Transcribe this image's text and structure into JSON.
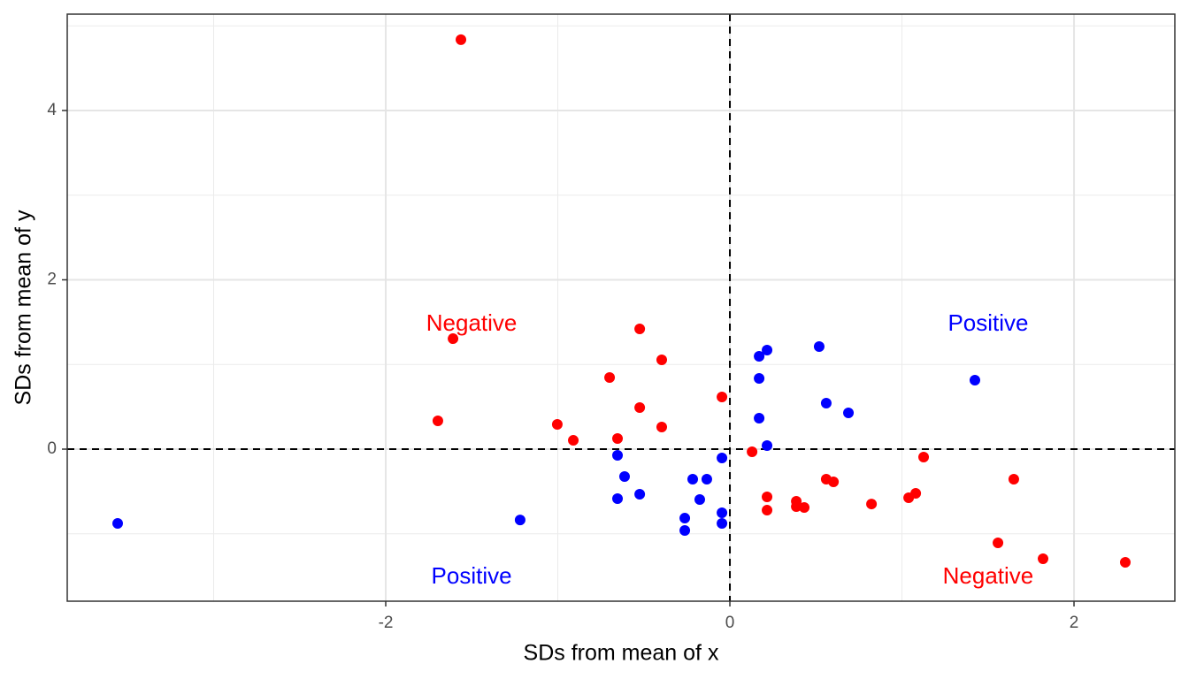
{
  "chart_data": {
    "type": "scatter",
    "xlabel": "SDs from mean of x",
    "ylabel": "SDs from mean of y",
    "xlim": [
      -3.851,
      2.586
    ],
    "ylim": [
      -1.796,
      5.138
    ],
    "xticks": [
      -2,
      0,
      2
    ],
    "yticks": [
      0,
      2,
      4
    ],
    "x_minor_grid": [
      -3,
      -1,
      1
    ],
    "y_minor_grid": [
      -1,
      1,
      3,
      5
    ],
    "grid": true,
    "hlines": [
      0
    ],
    "vlines": [
      0
    ],
    "series": [
      {
        "color": "#ff0000",
        "x": [
          -1.563,
          -1.609,
          -1.697,
          -0.524,
          -0.396,
          -0.699,
          -0.524,
          -1.003,
          -0.91,
          -0.653,
          -0.396,
          -0.046,
          0.129,
          0.216,
          0.216,
          0.386,
          0.386,
          0.432,
          0.56,
          0.602,
          0.823,
          1.039,
          1.08,
          1.126,
          1.65,
          1.558,
          1.82,
          2.298
        ],
        "y": [
          4.836,
          1.305,
          0.334,
          1.42,
          1.055,
          0.846,
          0.491,
          0.292,
          0.104,
          0.125,
          0.261,
          0.616,
          -0.031,
          -0.564,
          -0.721,
          -0.616,
          -0.679,
          -0.689,
          -0.355,
          -0.386,
          -0.648,
          -0.574,
          -0.522,
          -0.094,
          -0.355,
          -1.107,
          -1.295,
          -1.337
        ]
      },
      {
        "color": "#0000ff",
        "x": [
          -3.558,
          -1.219,
          -0.653,
          -0.612,
          -0.524,
          -0.653,
          -0.216,
          -0.134,
          -0.175,
          -0.046,
          -0.262,
          -0.262,
          -0.046,
          -0.046,
          0.17,
          0.216,
          0.17,
          0.17,
          0.216,
          0.519,
          0.56,
          0.689,
          1.424
        ],
        "y": [
          -0.877,
          -0.836,
          -0.073,
          -0.324,
          -0.533,
          -0.585,
          -0.355,
          -0.355,
          -0.595,
          -0.104,
          -0.815,
          -0.961,
          -0.752,
          -0.877,
          1.097,
          1.17,
          0.836,
          0.366,
          0.042,
          1.211,
          0.543,
          0.428,
          0.815
        ]
      }
    ],
    "annotations": [
      {
        "text": "Negative",
        "x": -1.501,
        "y": 1.473,
        "color": "#ff0000"
      },
      {
        "text": "Positive",
        "x": 1.501,
        "y": 1.473,
        "color": "#0000ff"
      },
      {
        "text": "Positive",
        "x": -1.501,
        "y": -1.514,
        "color": "#0000ff"
      },
      {
        "text": "Negative",
        "x": 1.501,
        "y": -1.514,
        "color": "#ff0000"
      }
    ]
  }
}
